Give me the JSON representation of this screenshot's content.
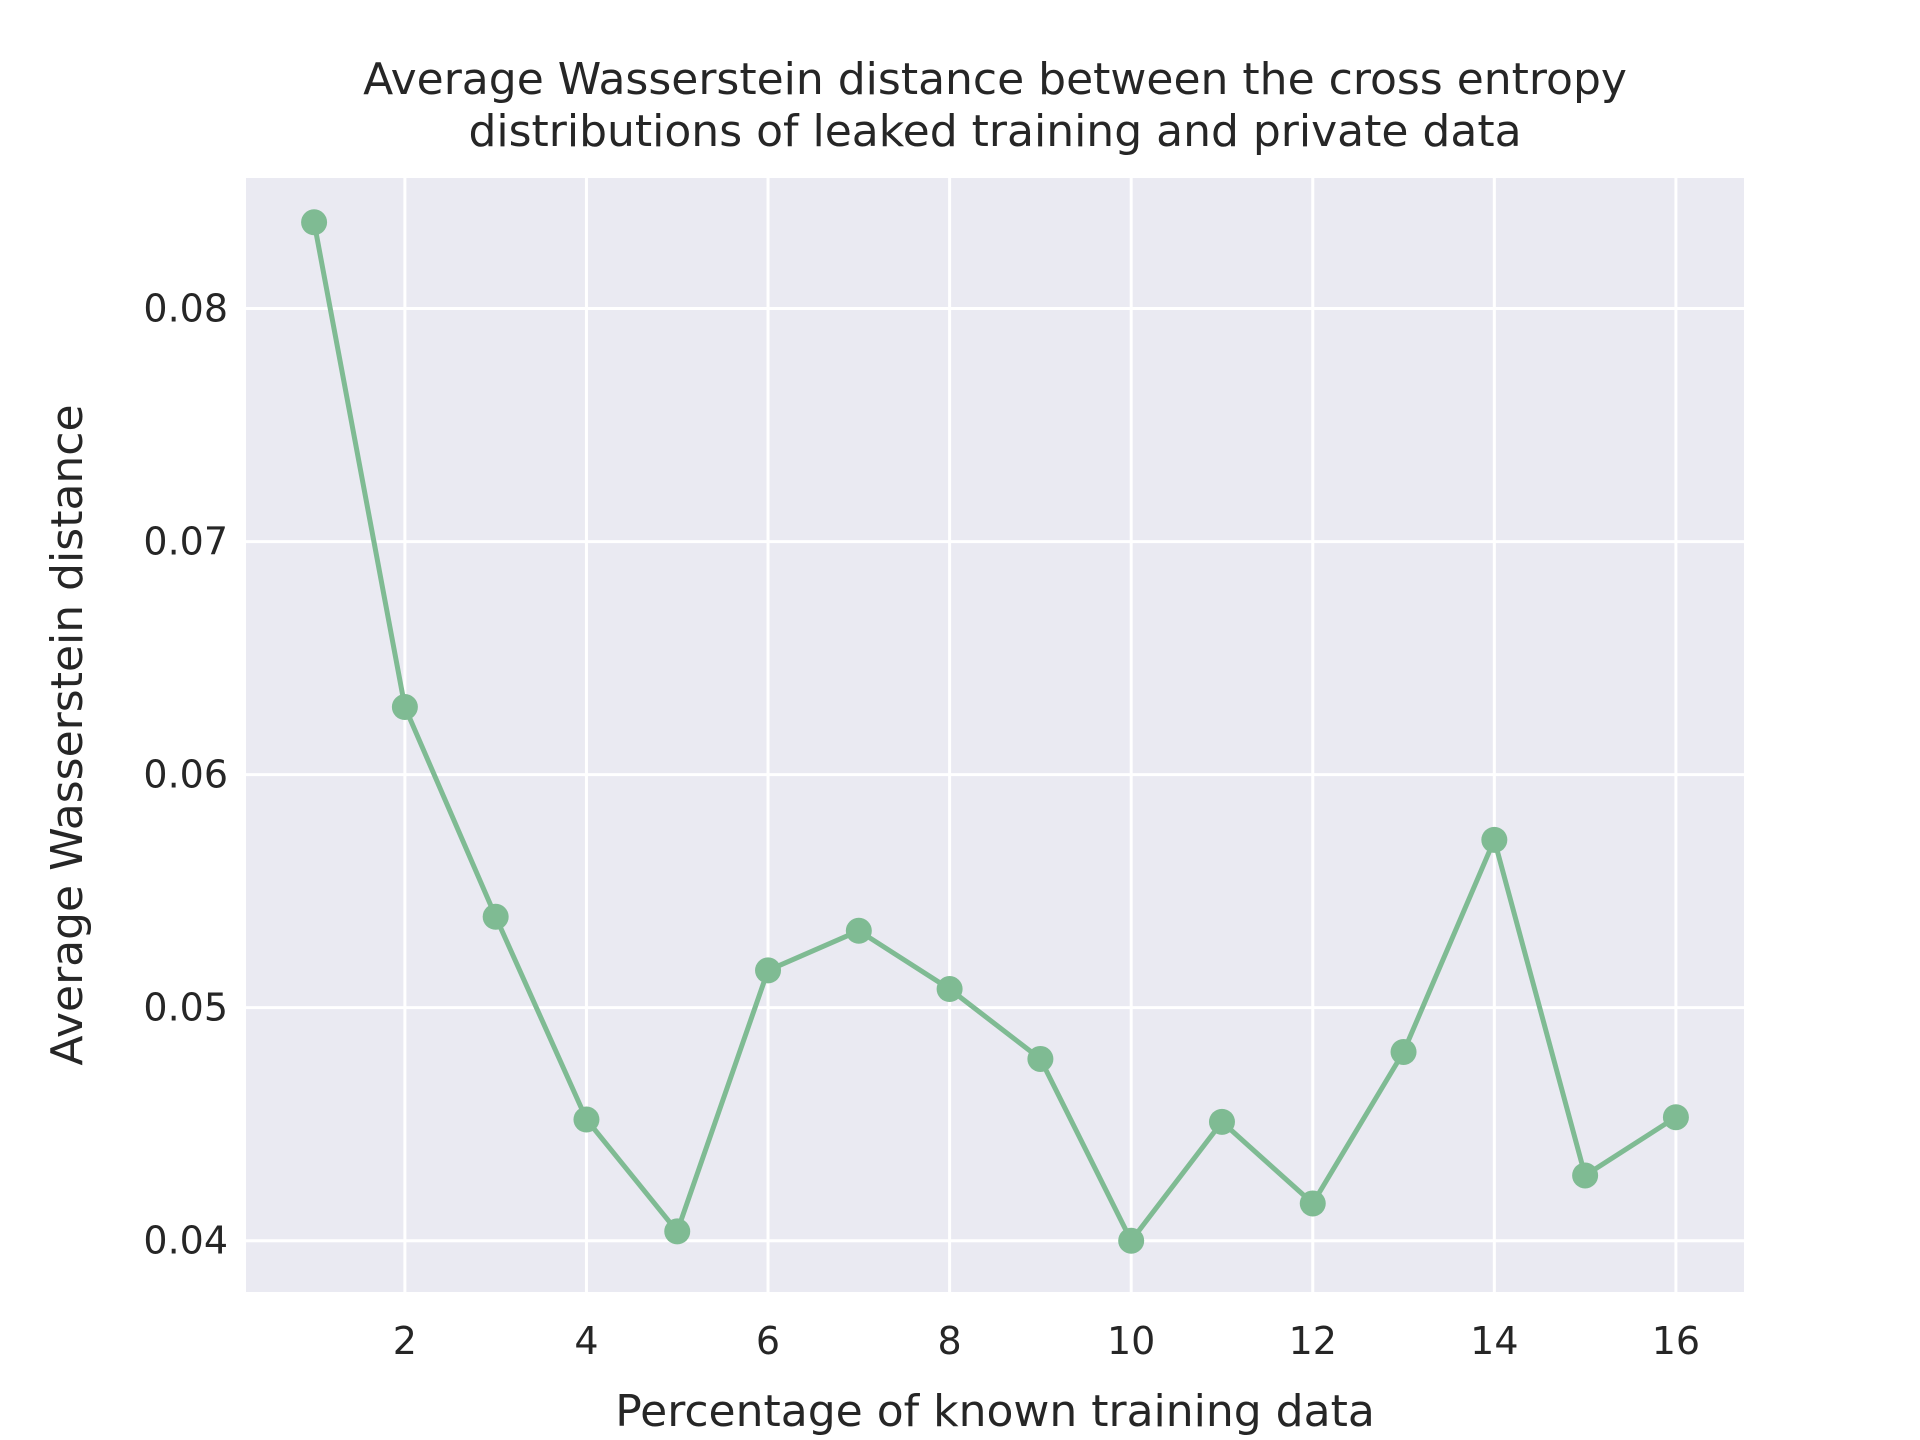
{
  "chart_data": {
    "type": "line",
    "title_lines": [
      "Average Wasserstein distance between the cross entropy",
      "distributions of leaked training and private data"
    ],
    "xlabel": "Percentage of known training data",
    "ylabel": "Average Wasserstein distance",
    "x": [
      1,
      2,
      3,
      4,
      5,
      6,
      7,
      8,
      9,
      10,
      11,
      12,
      13,
      14,
      15,
      16
    ],
    "y": [
      0.0837,
      0.0629,
      0.0539,
      0.0452,
      0.0404,
      0.0516,
      0.0533,
      0.0508,
      0.0478,
      0.04,
      0.0451,
      0.0416,
      0.0481,
      0.0572,
      0.0428,
      0.0453
    ],
    "xlim": [
      0.25,
      16.75
    ],
    "ylim": [
      0.0378,
      0.0856
    ],
    "xticks": [
      2,
      4,
      6,
      8,
      10,
      12,
      14,
      16
    ],
    "xtick_labels": [
      "2",
      "4",
      "6",
      "8",
      "10",
      "12",
      "14",
      "16"
    ],
    "yticks": [
      0.04,
      0.05,
      0.06,
      0.07,
      0.08
    ],
    "ytick_labels": [
      "0.04",
      "0.05",
      "0.06",
      "0.07",
      "0.08"
    ],
    "grid": true,
    "legend": "none",
    "colors": {
      "series": "#7fbb93",
      "plot_background": "#eaeaf2",
      "grid": "#ffffff",
      "text": "#262626"
    }
  }
}
